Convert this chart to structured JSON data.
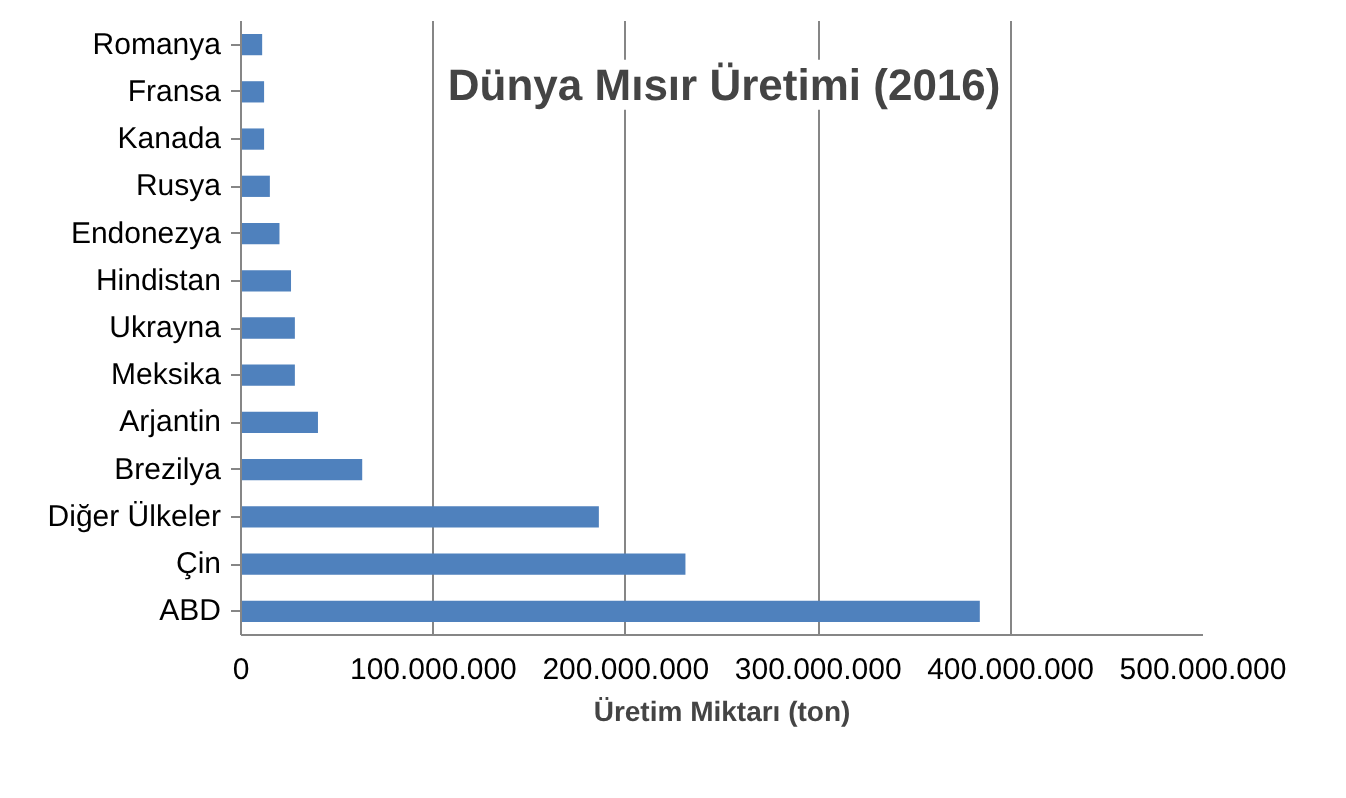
{
  "chart_data": {
    "type": "bar",
    "orientation": "horizontal",
    "title": "Dünya Mısır Üretimi (2016)",
    "xlabel": "Üretim Miktarı (ton)",
    "categories": [
      "Romanya",
      "Fransa",
      "Kanada",
      "Rusya",
      "Endonezya",
      "Hindistan",
      "Ukrayna",
      "Meksika",
      "Arjantin",
      "Brezilya",
      "Diğer Ülkeler",
      "Çin",
      "ABD"
    ],
    "values": [
      11000000,
      12000000,
      12000000,
      15000000,
      20000000,
      26000000,
      28000000,
      28000000,
      40000000,
      63000000,
      186000000,
      231000000,
      384000000
    ],
    "color": "#4f81bd",
    "xlim": [
      0,
      500000000
    ],
    "xticks": [
      0,
      {
        "value": 100000000,
        "label": "100.000.000"
      },
      {
        "value": 200000000,
        "label": "200.000.000"
      },
      {
        "value": 300000000,
        "label": "300.000.000"
      },
      {
        "value": 400000000,
        "label": "400.000.000"
      },
      {
        "value": 500000000,
        "label": "500.000.000"
      }
    ],
    "grid": "x"
  }
}
